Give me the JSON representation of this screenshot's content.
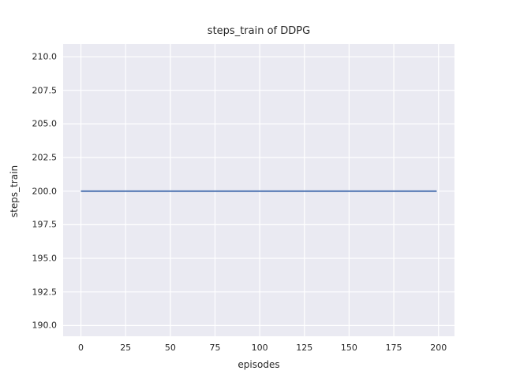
{
  "chart_data": {
    "type": "line",
    "title": "steps_train of DDPG",
    "xlabel": "episodes",
    "ylabel": "steps_train",
    "x_ticks": [
      0,
      25,
      50,
      75,
      100,
      125,
      150,
      175,
      200
    ],
    "x_tick_labels": [
      "0",
      "25",
      "50",
      "75",
      "100",
      "125",
      "150",
      "175",
      "200"
    ],
    "y_ticks": [
      190.0,
      192.5,
      195.0,
      197.5,
      200.0,
      202.5,
      205.0,
      207.5,
      210.0
    ],
    "y_tick_labels": [
      "190.0",
      "192.5",
      "195.0",
      "197.5",
      "200.0",
      "202.5",
      "205.0",
      "207.5",
      "210.0"
    ],
    "xlim": [
      -9.95,
      208.95
    ],
    "ylim": [
      189.2,
      210.94
    ],
    "grid": true,
    "legend": "none",
    "series": [
      {
        "name": "steps_train",
        "description": "constant value 200 for every episode from 0 to 199",
        "x": [
          0,
          199
        ],
        "y": [
          200,
          200
        ],
        "color": "#4c72b0",
        "line_width": 2
      }
    ],
    "colors": {
      "plot_background": "#eaeaf2",
      "figure_background": "#ffffff",
      "gridline": "#ffffff",
      "text": "#262626"
    }
  }
}
